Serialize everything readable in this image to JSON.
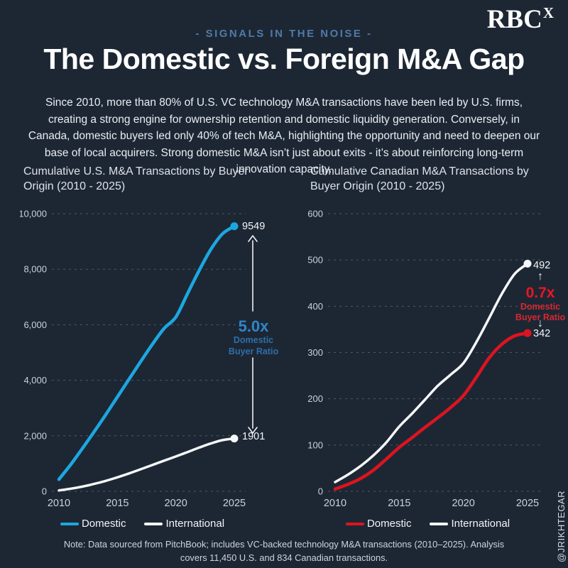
{
  "page": {
    "kicker": "- SIGNALS IN THE NOISE -",
    "logo": {
      "text": "RBC",
      "sup": "X"
    },
    "title": "The Domestic vs. Foreign M&A Gap",
    "intro": "Since 2010, more than 80% of U.S. VC technology M&A transactions have been led by U.S. firms, creating a strong engine for ownership retention and domestic liquidity generation. Conversely, in Canada, domestic buyers led only 40% of tech M&A, highlighting the opportunity and need to deepen our base of local acquirers. Strong domestic M&A isn’t just about exits - it’s about reinforcing long-term innovation capacity.",
    "note_line1": "Note: Data sourced from PitchBook; includes VC-backed technology M&A transactions (2010–2025). Analysis",
    "note_line2": "covers 11,450 U.S. and 834 Canadian transactions.",
    "watermark": "@JRIKHTEGAR"
  },
  "colors": {
    "background": "#1d2734",
    "accent_blue": "#1ca7e0",
    "accent_red": "#dc1420",
    "kicker_blue": "#4e7ba8",
    "line_white": "#f5f7f9"
  },
  "chart_data": [
    {
      "type": "line",
      "title": "Cumulative U.S. M&A Transactions by Buyer Origin (2010 - 2025)",
      "xlabel": "",
      "ylabel": "",
      "grid": "dashed-horizontal",
      "legend_position": "bottom",
      "x": [
        2010,
        2011,
        2012,
        2013,
        2014,
        2015,
        2016,
        2017,
        2018,
        2019,
        2020,
        2021,
        2022,
        2023,
        2024,
        2025
      ],
      "x_ticks": [
        "2010",
        "2015",
        "2020",
        "2025"
      ],
      "ylim": [
        0,
        10000
      ],
      "y_ticks": [
        0,
        2000,
        4000,
        6000,
        8000,
        10000
      ],
      "y_tick_labels": [
        "0",
        "2,000",
        "4,000",
        "6,000",
        "8,000",
        "10,000"
      ],
      "series": [
        {
          "name": "Domestic",
          "color": "#1ca7e0",
          "end_label": "9549",
          "values": [
            430,
            960,
            1540,
            2140,
            2760,
            3400,
            4040,
            4680,
            5300,
            5870,
            6280,
            7120,
            7960,
            8720,
            9280,
            9549
          ]
        },
        {
          "name": "International",
          "color": "#f5f7f9",
          "end_label": "1901",
          "values": [
            30,
            95,
            170,
            265,
            375,
            505,
            645,
            795,
            950,
            1105,
            1255,
            1415,
            1575,
            1725,
            1845,
            1901
          ]
        }
      ],
      "annotation": {
        "ratio": "5.0x",
        "sub": [
          "Domestic",
          "Buyer Ratio"
        ],
        "color": "#2f86c8",
        "sub_color": "#2d6fa8"
      }
    },
    {
      "type": "line",
      "title": "Cumulative Canadian M&A Transactions by Buyer Origin (2010 - 2025)",
      "xlabel": "",
      "ylabel": "",
      "grid": "dashed-horizontal",
      "legend_position": "bottom",
      "x": [
        2010,
        2011,
        2012,
        2013,
        2014,
        2015,
        2016,
        2017,
        2018,
        2019,
        2020,
        2021,
        2022,
        2023,
        2024,
        2025
      ],
      "x_ticks": [
        "2010",
        "2015",
        "2020",
        "2025"
      ],
      "ylim": [
        0,
        600
      ],
      "y_ticks": [
        0,
        100,
        200,
        300,
        400,
        500,
        600
      ],
      "y_tick_labels": [
        "0",
        "100",
        "200",
        "300",
        "400",
        "500",
        "600"
      ],
      "series": [
        {
          "name": "Domestic",
          "color": "#dc1420",
          "end_label": "342",
          "values": [
            5,
            15,
            28,
            46,
            70,
            95,
            116,
            138,
            159,
            181,
            207,
            246,
            288,
            318,
            336,
            342
          ]
        },
        {
          "name": "International",
          "color": "#f5f7f9",
          "end_label": "492",
          "values": [
            20,
            36,
            55,
            78,
            106,
            140,
            168,
            198,
            228,
            252,
            277,
            322,
            374,
            427,
            470,
            492
          ]
        }
      ],
      "annotation": {
        "ratio": "0.7x",
        "sub": [
          "Domestic",
          "Buyer Ratio"
        ],
        "color": "#ea1524",
        "sub_color": "#d92731"
      }
    }
  ]
}
